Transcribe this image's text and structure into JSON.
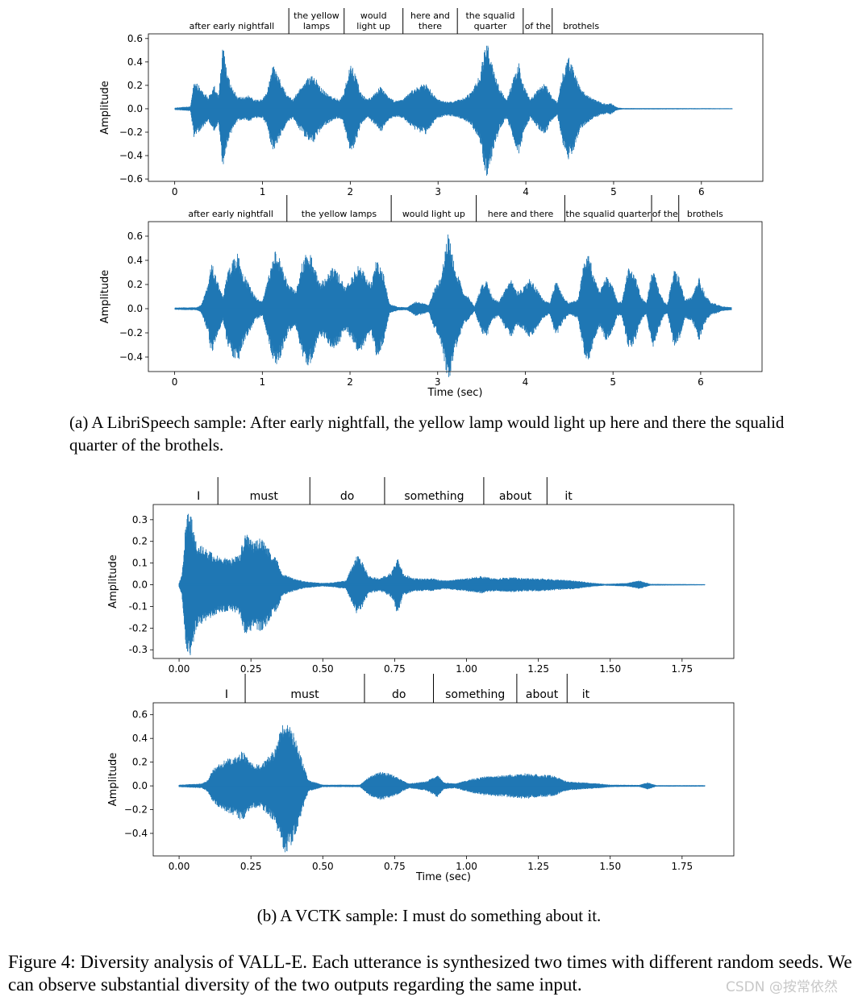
{
  "chart_data": [
    {
      "type": "line",
      "panel": "a-top",
      "ylabel": "Amplitude",
      "xlabel": "",
      "xlim": [
        -0.3,
        6.7
      ],
      "ylim": [
        -0.62,
        0.64
      ],
      "xticks": [
        0,
        1,
        2,
        3,
        4,
        5,
        6
      ],
      "yticks": [
        0.6,
        0.4,
        0.2,
        0.0,
        -0.2,
        -0.4,
        -0.6
      ],
      "ytick_labels": [
        "0.6",
        "0.4",
        "0.2",
        "0.0",
        "−0.2",
        "−0.4",
        "−0.6"
      ],
      "color": "#1f77b4",
      "signal_end": 6.35,
      "words": [
        {
          "lines": [
            "after early nightfall"
          ],
          "start": 0.0,
          "end": 1.3
        },
        {
          "lines": [
            "the yellow",
            "lamps"
          ],
          "start": 1.3,
          "end": 1.93
        },
        {
          "lines": [
            "would",
            "light up"
          ],
          "start": 1.93,
          "end": 2.6
        },
        {
          "lines": [
            "here and",
            "there"
          ],
          "start": 2.6,
          "end": 3.22
        },
        {
          "lines": [
            "the squalid",
            "quarter"
          ],
          "start": 3.22,
          "end": 3.97
        },
        {
          "lines": [
            "of the"
          ],
          "start": 3.97,
          "end": 4.3
        },
        {
          "lines": [
            "brothels"
          ],
          "start": 4.3,
          "end": 4.96
        }
      ],
      "envelope": [
        [
          0.0,
          0.01
        ],
        [
          0.18,
          0.02
        ],
        [
          0.22,
          0.25
        ],
        [
          0.3,
          0.18
        ],
        [
          0.38,
          0.1
        ],
        [
          0.45,
          0.2
        ],
        [
          0.5,
          0.12
        ],
        [
          0.55,
          0.55
        ],
        [
          0.6,
          0.3
        ],
        [
          0.65,
          0.2
        ],
        [
          0.72,
          0.1
        ],
        [
          0.8,
          0.1
        ],
        [
          0.85,
          0.12
        ],
        [
          0.9,
          0.08
        ],
        [
          1.0,
          0.08
        ],
        [
          1.05,
          0.15
        ],
        [
          1.12,
          0.38
        ],
        [
          1.2,
          0.25
        ],
        [
          1.28,
          0.12
        ],
        [
          1.35,
          0.08
        ],
        [
          1.42,
          0.18
        ],
        [
          1.5,
          0.26
        ],
        [
          1.58,
          0.3
        ],
        [
          1.65,
          0.2
        ],
        [
          1.72,
          0.14
        ],
        [
          1.8,
          0.1
        ],
        [
          1.88,
          0.08
        ],
        [
          1.92,
          0.12
        ],
        [
          2.0,
          0.4
        ],
        [
          2.06,
          0.3
        ],
        [
          2.12,
          0.14
        ],
        [
          2.2,
          0.08
        ],
        [
          2.28,
          0.14
        ],
        [
          2.35,
          0.2
        ],
        [
          2.42,
          0.12
        ],
        [
          2.5,
          0.07
        ],
        [
          2.6,
          0.08
        ],
        [
          2.7,
          0.16
        ],
        [
          2.78,
          0.2
        ],
        [
          2.86,
          0.22
        ],
        [
          2.94,
          0.14
        ],
        [
          3.0,
          0.08
        ],
        [
          3.1,
          0.06
        ],
        [
          3.2,
          0.07
        ],
        [
          3.3,
          0.1
        ],
        [
          3.38,
          0.14
        ],
        [
          3.48,
          0.3
        ],
        [
          3.55,
          0.6
        ],
        [
          3.62,
          0.4
        ],
        [
          3.7,
          0.18
        ],
        [
          3.78,
          0.08
        ],
        [
          3.85,
          0.24
        ],
        [
          3.92,
          0.4
        ],
        [
          3.98,
          0.2
        ],
        [
          4.05,
          0.08
        ],
        [
          4.15,
          0.18
        ],
        [
          4.22,
          0.22
        ],
        [
          4.3,
          0.1
        ],
        [
          4.36,
          0.06
        ],
        [
          4.42,
          0.3
        ],
        [
          4.48,
          0.45
        ],
        [
          4.55,
          0.35
        ],
        [
          4.62,
          0.18
        ],
        [
          4.7,
          0.12
        ],
        [
          4.78,
          0.08
        ],
        [
          4.85,
          0.06
        ],
        [
          4.92,
          0.04
        ],
        [
          4.97,
          0.05
        ],
        [
          5.02,
          0.02
        ],
        [
          5.05,
          0.01
        ],
        [
          5.1,
          0.006
        ],
        [
          6.35,
          0.004
        ]
      ]
    },
    {
      "type": "line",
      "panel": "a-bottom",
      "ylabel": "Amplitude",
      "xlabel": "Time (sec)",
      "xlim": [
        -0.3,
        6.7
      ],
      "ylim": [
        -0.52,
        0.72
      ],
      "xticks": [
        0,
        1,
        2,
        3,
        4,
        5,
        6
      ],
      "yticks": [
        0.6,
        0.4,
        0.2,
        0.0,
        -0.2,
        -0.4
      ],
      "ytick_labels": [
        "0.6",
        "0.4",
        "0.2",
        "0.0",
        "−0.2",
        "−0.4"
      ],
      "color": "#1f77b4",
      "signal_end": 6.35,
      "words": [
        {
          "lines": [
            "after early nightfall"
          ],
          "start": 0.0,
          "end": 1.28
        },
        {
          "lines": [
            "the yellow lamps"
          ],
          "start": 1.28,
          "end": 2.47
        },
        {
          "lines": [
            "would light up"
          ],
          "start": 2.47,
          "end": 3.44
        },
        {
          "lines": [
            "here and there"
          ],
          "start": 3.44,
          "end": 4.45
        },
        {
          "lines": [
            "the squalid quarter"
          ],
          "start": 4.45,
          "end": 5.44
        },
        {
          "lines": [
            "of the"
          ],
          "start": 5.44,
          "end": 5.75
        },
        {
          "lines": [
            "brothels"
          ],
          "start": 5.75,
          "end": 6.35
        }
      ],
      "envelope": [
        [
          0.0,
          0.01
        ],
        [
          0.25,
          0.012
        ],
        [
          0.3,
          0.03
        ],
        [
          0.38,
          0.2
        ],
        [
          0.42,
          0.4
        ],
        [
          0.48,
          0.25
        ],
        [
          0.55,
          0.1
        ],
        [
          0.6,
          0.3
        ],
        [
          0.66,
          0.4
        ],
        [
          0.72,
          0.46
        ],
        [
          0.78,
          0.3
        ],
        [
          0.85,
          0.2
        ],
        [
          0.92,
          0.1
        ],
        [
          1.0,
          0.06
        ],
        [
          1.08,
          0.3
        ],
        [
          1.15,
          0.5
        ],
        [
          1.22,
          0.38
        ],
        [
          1.3,
          0.2
        ],
        [
          1.38,
          0.15
        ],
        [
          1.45,
          0.38
        ],
        [
          1.52,
          0.5
        ],
        [
          1.58,
          0.4
        ],
        [
          1.65,
          0.22
        ],
        [
          1.72,
          0.25
        ],
        [
          1.8,
          0.35
        ],
        [
          1.88,
          0.28
        ],
        [
          1.95,
          0.18
        ],
        [
          2.02,
          0.26
        ],
        [
          2.1,
          0.38
        ],
        [
          2.18,
          0.28
        ],
        [
          2.25,
          0.22
        ],
        [
          2.3,
          0.42
        ],
        [
          2.38,
          0.3
        ],
        [
          2.45,
          0.04
        ],
        [
          2.55,
          0.015
        ],
        [
          2.65,
          0.012
        ],
        [
          2.75,
          0.06
        ],
        [
          2.82,
          0.05
        ],
        [
          2.9,
          0.03
        ],
        [
          2.95,
          0.15
        ],
        [
          3.02,
          0.24
        ],
        [
          3.08,
          0.45
        ],
        [
          3.12,
          0.65
        ],
        [
          3.18,
          0.4
        ],
        [
          3.25,
          0.25
        ],
        [
          3.3,
          0.12
        ],
        [
          3.35,
          0.1
        ],
        [
          3.42,
          0.02
        ],
        [
          3.5,
          0.2
        ],
        [
          3.56,
          0.24
        ],
        [
          3.62,
          0.1
        ],
        [
          3.7,
          0.06
        ],
        [
          3.78,
          0.18
        ],
        [
          3.84,
          0.24
        ],
        [
          3.9,
          0.14
        ],
        [
          3.98,
          0.18
        ],
        [
          4.05,
          0.25
        ],
        [
          4.12,
          0.18
        ],
        [
          4.2,
          0.08
        ],
        [
          4.28,
          0.05
        ],
        [
          4.35,
          0.24
        ],
        [
          4.42,
          0.12
        ],
        [
          4.5,
          0.05
        ],
        [
          4.6,
          0.08
        ],
        [
          4.66,
          0.35
        ],
        [
          4.72,
          0.48
        ],
        [
          4.78,
          0.28
        ],
        [
          4.85,
          0.15
        ],
        [
          4.92,
          0.28
        ],
        [
          5.0,
          0.18
        ],
        [
          5.05,
          0.06
        ],
        [
          5.1,
          0.06
        ],
        [
          5.18,
          0.36
        ],
        [
          5.25,
          0.28
        ],
        [
          5.32,
          0.1
        ],
        [
          5.38,
          0.05
        ],
        [
          5.45,
          0.34
        ],
        [
          5.5,
          0.22
        ],
        [
          5.58,
          0.06
        ],
        [
          5.62,
          0.04
        ],
        [
          5.7,
          0.34
        ],
        [
          5.76,
          0.25
        ],
        [
          5.82,
          0.08
        ],
        [
          5.9,
          0.1
        ],
        [
          5.98,
          0.27
        ],
        [
          6.05,
          0.12
        ],
        [
          6.12,
          0.05
        ],
        [
          6.18,
          0.04
        ],
        [
          6.24,
          0.02
        ],
        [
          6.35,
          0.012
        ]
      ]
    },
    {
      "type": "line",
      "panel": "b-top",
      "ylabel": "Amplitude",
      "xlabel": "",
      "xlim": [
        -0.09,
        1.93
      ],
      "ylim": [
        -0.34,
        0.37
      ],
      "xticks": [
        0.0,
        0.25,
        0.5,
        0.75,
        1.0,
        1.25,
        1.5,
        1.75
      ],
      "xtick_labels": [
        "0.00",
        "0.25",
        "0.50",
        "0.75",
        "1.00",
        "1.25",
        "1.50",
        "1.75"
      ],
      "yticks": [
        0.3,
        0.2,
        0.1,
        0.0,
        -0.1,
        -0.2,
        -0.3
      ],
      "ytick_labels": [
        "0.3",
        "0.2",
        "0.1",
        "0.0",
        "-0.1",
        "-0.2",
        "-0.3"
      ],
      "color": "#1f77b4",
      "signal_end": 1.83,
      "words": [
        {
          "lines": [
            "I"
          ],
          "start": 0.0,
          "end": 0.135
        },
        {
          "lines": [
            "must"
          ],
          "start": 0.135,
          "end": 0.455
        },
        {
          "lines": [
            "do"
          ],
          "start": 0.455,
          "end": 0.715
        },
        {
          "lines": [
            "something"
          ],
          "start": 0.715,
          "end": 1.06
        },
        {
          "lines": [
            "about"
          ],
          "start": 1.06,
          "end": 1.28
        },
        {
          "lines": [
            "it"
          ],
          "start": 1.28,
          "end": 1.43
        }
      ],
      "envelope": [
        [
          0.0,
          0.01
        ],
        [
          0.01,
          0.05
        ],
        [
          0.025,
          0.32
        ],
        [
          0.04,
          0.34
        ],
        [
          0.06,
          0.2
        ],
        [
          0.1,
          0.16
        ],
        [
          0.14,
          0.13
        ],
        [
          0.18,
          0.12
        ],
        [
          0.21,
          0.14
        ],
        [
          0.23,
          0.24
        ],
        [
          0.26,
          0.2
        ],
        [
          0.28,
          0.22
        ],
        [
          0.3,
          0.2
        ],
        [
          0.32,
          0.15
        ],
        [
          0.34,
          0.12
        ],
        [
          0.36,
          0.05
        ],
        [
          0.4,
          0.03
        ],
        [
          0.44,
          0.015
        ],
        [
          0.5,
          0.008
        ],
        [
          0.54,
          0.012
        ],
        [
          0.58,
          0.02
        ],
        [
          0.6,
          0.08
        ],
        [
          0.62,
          0.14
        ],
        [
          0.64,
          0.1
        ],
        [
          0.66,
          0.04
        ],
        [
          0.7,
          0.03
        ],
        [
          0.74,
          0.06
        ],
        [
          0.76,
          0.14
        ],
        [
          0.78,
          0.05
        ],
        [
          0.82,
          0.03
        ],
        [
          0.88,
          0.03
        ],
        [
          0.92,
          0.02
        ],
        [
          0.96,
          0.025
        ],
        [
          1.0,
          0.03
        ],
        [
          1.05,
          0.04
        ],
        [
          1.1,
          0.03
        ],
        [
          1.16,
          0.035
        ],
        [
          1.2,
          0.03
        ],
        [
          1.26,
          0.03
        ],
        [
          1.32,
          0.025
        ],
        [
          1.38,
          0.02
        ],
        [
          1.42,
          0.012
        ],
        [
          1.48,
          0.004
        ],
        [
          1.56,
          0.008
        ],
        [
          1.6,
          0.02
        ],
        [
          1.64,
          0.004
        ],
        [
          1.83,
          0.002
        ]
      ]
    },
    {
      "type": "line",
      "panel": "b-bottom",
      "ylabel": "Amplitude",
      "xlabel": "Time (sec)",
      "xlim": [
        -0.09,
        1.93
      ],
      "ylim": [
        -0.59,
        0.7
      ],
      "xticks": [
        0.0,
        0.25,
        0.5,
        0.75,
        1.0,
        1.25,
        1.5,
        1.75
      ],
      "xtick_labels": [
        "0.00",
        "0.25",
        "0.50",
        "0.75",
        "1.00",
        "1.25",
        "1.50",
        "1.75"
      ],
      "yticks": [
        0.6,
        0.4,
        0.2,
        0.0,
        -0.2,
        -0.4
      ],
      "ytick_labels": [
        "0.6",
        "0.4",
        "0.2",
        "0.0",
        "−0.2",
        "−0.4"
      ],
      "color": "#1f77b4",
      "signal_end": 1.83,
      "words": [
        {
          "lines": [
            "I"
          ],
          "start": 0.1,
          "end": 0.23
        },
        {
          "lines": [
            "must"
          ],
          "start": 0.23,
          "end": 0.645
        },
        {
          "lines": [
            "do"
          ],
          "start": 0.645,
          "end": 0.885
        },
        {
          "lines": [
            "something"
          ],
          "start": 0.885,
          "end": 1.175
        },
        {
          "lines": [
            "about"
          ],
          "start": 1.175,
          "end": 1.35
        },
        {
          "lines": [
            "it"
          ],
          "start": 1.35,
          "end": 1.48
        }
      ],
      "envelope": [
        [
          0.0,
          0.01
        ],
        [
          0.08,
          0.02
        ],
        [
          0.1,
          0.05
        ],
        [
          0.12,
          0.15
        ],
        [
          0.16,
          0.22
        ],
        [
          0.2,
          0.26
        ],
        [
          0.22,
          0.3
        ],
        [
          0.25,
          0.2
        ],
        [
          0.28,
          0.18
        ],
        [
          0.3,
          0.22
        ],
        [
          0.33,
          0.3
        ],
        [
          0.35,
          0.45
        ],
        [
          0.37,
          0.6
        ],
        [
          0.39,
          0.5
        ],
        [
          0.41,
          0.38
        ],
        [
          0.43,
          0.2
        ],
        [
          0.45,
          0.05
        ],
        [
          0.5,
          0.01
        ],
        [
          0.55,
          0.01
        ],
        [
          0.63,
          0.01
        ],
        [
          0.66,
          0.08
        ],
        [
          0.7,
          0.12
        ],
        [
          0.74,
          0.1
        ],
        [
          0.77,
          0.06
        ],
        [
          0.8,
          0.02
        ],
        [
          0.86,
          0.04
        ],
        [
          0.9,
          0.1
        ],
        [
          0.92,
          0.03
        ],
        [
          0.96,
          0.02
        ],
        [
          1.02,
          0.06
        ],
        [
          1.06,
          0.08
        ],
        [
          1.12,
          0.09
        ],
        [
          1.16,
          0.1
        ],
        [
          1.2,
          0.11
        ],
        [
          1.24,
          0.1
        ],
        [
          1.3,
          0.09
        ],
        [
          1.35,
          0.04
        ],
        [
          1.4,
          0.03
        ],
        [
          1.46,
          0.02
        ],
        [
          1.5,
          0.01
        ],
        [
          1.6,
          0.008
        ],
        [
          1.63,
          0.03
        ],
        [
          1.66,
          0.006
        ],
        [
          1.83,
          0.006
        ]
      ]
    }
  ],
  "captions": {
    "a": "(a) A LibriSpeech sample: After early nightfall, the yellow lamp would light up here and there the squalid quarter of the brothels.",
    "b": "(b) A VCTK sample: I must do something about it.",
    "figure": "Figure 4: Diversity analysis of VALL-E. Each utterance is synthesized two times with different random seeds. We can observe substantial diversity of the two outputs regarding the same input.",
    "watermark": "CSDN @按常依然"
  }
}
